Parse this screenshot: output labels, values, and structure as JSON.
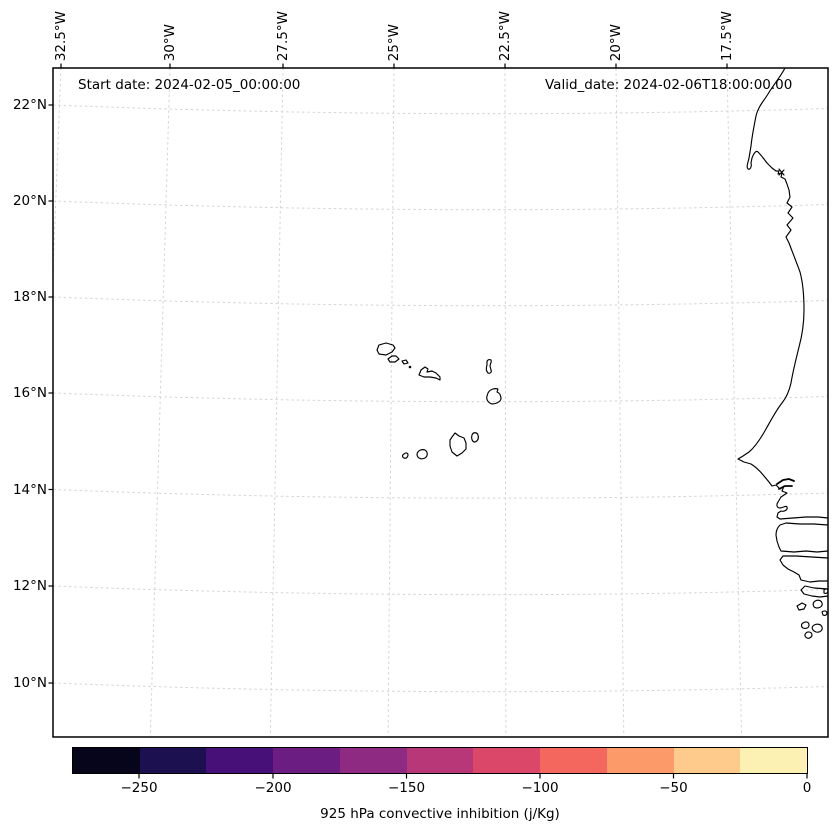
{
  "annotations": {
    "start_date": "Start date: 2024-02-05_00:00:00",
    "valid_date": "Valid_date: 2024-02-06T18:00:00.00"
  },
  "axes": {
    "top_ticks": [
      "32.5°W",
      "30°W",
      "27.5°W",
      "25°W",
      "22.5°W",
      "20°W",
      "17.5°W"
    ],
    "left_ticks": [
      "22°N",
      "20°N",
      "18°N",
      "16°N",
      "14°N",
      "12°N",
      "10°N"
    ]
  },
  "colorbar": {
    "label": "925 hPa convective inhibition (j/Kg)",
    "tick_labels": [
      "−250",
      "−200",
      "−150",
      "−100",
      "−50",
      "0"
    ],
    "segment_colors": [
      "#07051b",
      "#1d1050",
      "#471078",
      "#6b1d81",
      "#8e2a81",
      "#b73779",
      "#db4769",
      "#f3675e",
      "#fd9a6a",
      "#fecb8d",
      "#fcf0b2"
    ],
    "value_range": [
      -275,
      0
    ],
    "segment_step": 25,
    "colormap": "magma"
  },
  "style_colors": {
    "coastline": "#000000",
    "gridline": "#d4d4d4",
    "frame": "#000000",
    "background": "#ffffff"
  }
}
